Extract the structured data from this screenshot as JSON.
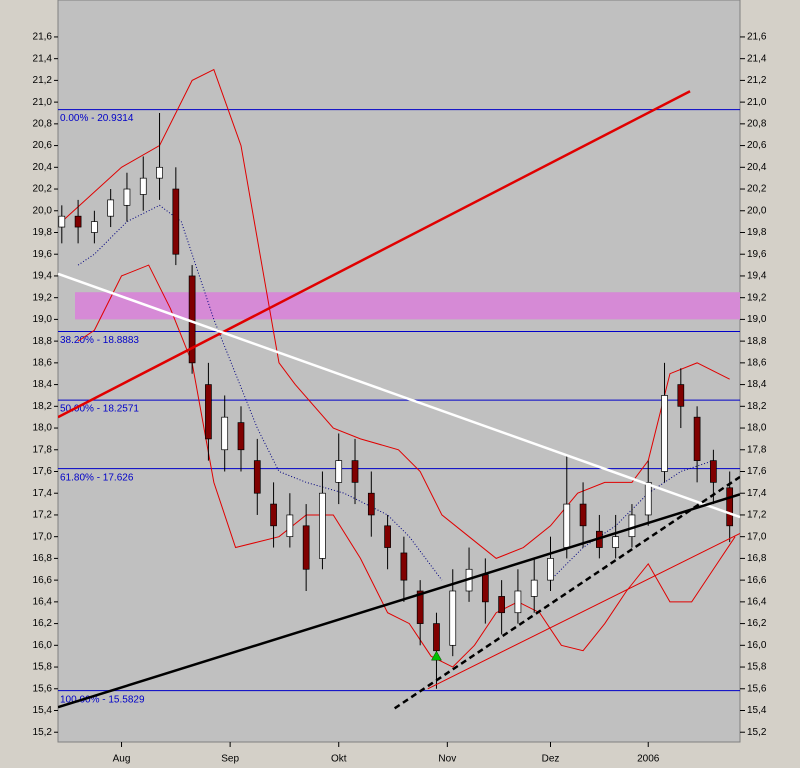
{
  "chart_data": {
    "type": "candlestick",
    "xlim": [
      -0.7,
      124.9
    ],
    "ylim": [
      15.11,
      21.94
    ],
    "xticks": [
      {
        "value": 11,
        "label": "Aug"
      },
      {
        "value": 31,
        "label": "Sep"
      },
      {
        "value": 51,
        "label": "Okt"
      },
      {
        "value": 71,
        "label": "Nov"
      },
      {
        "value": 90,
        "label": "Dez"
      },
      {
        "value": 108,
        "label": "2006"
      }
    ],
    "yticks": [
      {
        "value": 15.2,
        "label": "15,2"
      },
      {
        "value": 15.4,
        "label": "15,4"
      },
      {
        "value": 15.6,
        "label": "15,6"
      },
      {
        "value": 15.8,
        "label": "15,8"
      },
      {
        "value": 16.0,
        "label": "16,0"
      },
      {
        "value": 16.2,
        "label": "16,2"
      },
      {
        "value": 16.4,
        "label": "16,4"
      },
      {
        "value": 16.6,
        "label": "16,6"
      },
      {
        "value": 16.8,
        "label": "16,8"
      },
      {
        "value": 17.0,
        "label": "17,0"
      },
      {
        "value": 17.2,
        "label": "17,2"
      },
      {
        "value": 17.4,
        "label": "17,4"
      },
      {
        "value": 17.6,
        "label": "17,6"
      },
      {
        "value": 17.8,
        "label": "17,8"
      },
      {
        "value": 18.0,
        "label": "18,0"
      },
      {
        "value": 18.2,
        "label": "18,2"
      },
      {
        "value": 18.4,
        "label": "18,4"
      },
      {
        "value": 18.6,
        "label": "18,6"
      },
      {
        "value": 18.8,
        "label": "18,8"
      },
      {
        "value": 19.0,
        "label": "19,0"
      },
      {
        "value": 19.2,
        "label": "19,2"
      },
      {
        "value": 19.4,
        "label": "19,4"
      },
      {
        "value": 19.6,
        "label": "19,6"
      },
      {
        "value": 19.8,
        "label": "19,8"
      },
      {
        "value": 20.0,
        "label": "20,0"
      },
      {
        "value": 20.2,
        "label": "20,2"
      },
      {
        "value": 20.4,
        "label": "20,4"
      },
      {
        "value": 20.6,
        "label": "20,6"
      },
      {
        "value": 20.8,
        "label": "20,8"
      },
      {
        "value": 21.0,
        "label": "21,0"
      },
      {
        "value": 21.2,
        "label": "21,2"
      },
      {
        "value": 21.4,
        "label": "21,4"
      },
      {
        "value": 21.6,
        "label": "21,6"
      }
    ],
    "x": [
      0,
      3,
      6,
      9,
      12,
      15,
      18,
      21,
      24,
      27,
      30,
      33,
      36,
      39,
      42,
      45,
      48,
      51,
      54,
      57,
      60,
      63,
      66,
      69,
      72,
      75,
      78,
      81,
      84,
      87,
      90,
      93,
      96,
      99,
      102,
      105,
      108,
      111,
      114,
      117,
      120,
      123
    ],
    "open": [
      19.85,
      19.95,
      19.8,
      19.95,
      20.05,
      20.15,
      20.3,
      20.2,
      19.4,
      18.4,
      17.8,
      18.05,
      17.7,
      17.3,
      17.0,
      17.1,
      16.8,
      17.5,
      17.7,
      17.4,
      17.1,
      16.85,
      16.5,
      16.2,
      16.0,
      16.5,
      16.65,
      16.45,
      16.3,
      16.45,
      16.6,
      16.9,
      17.3,
      17.05,
      16.9,
      17.0,
      17.2,
      17.6,
      18.4,
      18.1,
      17.7,
      17.45
    ],
    "high": [
      20.05,
      20.1,
      20.0,
      20.2,
      20.35,
      20.5,
      20.9,
      20.4,
      19.5,
      18.6,
      18.3,
      18.2,
      17.9,
      17.5,
      17.4,
      17.3,
      17.6,
      17.95,
      17.9,
      17.6,
      17.2,
      17.0,
      16.6,
      16.3,
      16.7,
      16.9,
      16.8,
      16.6,
      16.7,
      16.8,
      17.0,
      17.75,
      17.5,
      17.2,
      17.2,
      17.3,
      17.7,
      18.6,
      18.55,
      18.2,
      17.8,
      17.6
    ],
    "low": [
      19.7,
      19.7,
      19.7,
      19.85,
      19.9,
      20.0,
      20.1,
      19.5,
      18.5,
      17.7,
      17.6,
      17.6,
      17.2,
      16.9,
      16.9,
      16.5,
      16.7,
      17.3,
      17.3,
      17.0,
      16.7,
      16.4,
      16.0,
      15.6,
      15.9,
      16.4,
      16.2,
      16.1,
      16.2,
      16.3,
      16.5,
      16.8,
      16.9,
      16.8,
      16.8,
      16.9,
      17.1,
      17.5,
      18.0,
      17.5,
      17.3,
      16.95
    ],
    "close": [
      19.95,
      19.85,
      19.9,
      20.1,
      20.2,
      20.3,
      20.4,
      19.6,
      18.6,
      17.9,
      18.1,
      17.8,
      17.4,
      17.1,
      17.2,
      16.7,
      17.4,
      17.7,
      17.5,
      17.2,
      16.9,
      16.6,
      16.2,
      15.95,
      16.5,
      16.7,
      16.4,
      16.3,
      16.5,
      16.6,
      16.8,
      17.3,
      17.1,
      16.9,
      17.0,
      17.2,
      17.5,
      18.3,
      18.2,
      17.7,
      17.5,
      17.1
    ],
    "up_color": "#ffffff",
    "down_color": "#800000",
    "series": [
      {
        "color": "#e00000",
        "style": "solid",
        "x": [
          0,
          11,
          18,
          24,
          28,
          33,
          40,
          43,
          50,
          55,
          62,
          66,
          70,
          75,
          80,
          85,
          90,
          95,
          100,
          105,
          108,
          112,
          117,
          123
        ],
        "values": [
          19.9,
          20.4,
          20.6,
          21.2,
          21.3,
          20.6,
          18.6,
          18.4,
          18.0,
          17.9,
          17.8,
          17.6,
          17.2,
          17.0,
          16.8,
          16.9,
          17.1,
          17.4,
          17.5,
          17.5,
          17.7,
          18.5,
          18.6,
          18.45
        ]
      },
      {
        "color": "#e00000",
        "style": "solid",
        "x": [
          3,
          6,
          11,
          16,
          20,
          24,
          28,
          32,
          36,
          40,
          45,
          50,
          55,
          60,
          64,
          68,
          72,
          76,
          80,
          84,
          88,
          92,
          96,
          100,
          104,
          108,
          112,
          116,
          120,
          124
        ],
        "values": [
          18.8,
          18.9,
          19.4,
          19.5,
          19.1,
          18.6,
          17.5,
          16.9,
          16.95,
          17.0,
          17.2,
          17.2,
          16.8,
          16.3,
          16.2,
          15.9,
          15.8,
          16.0,
          16.3,
          16.4,
          16.3,
          16.0,
          15.95,
          16.2,
          16.5,
          16.75,
          16.4,
          16.4,
          16.7,
          17.0
        ]
      },
      {
        "color": "#000080",
        "style": "dotted",
        "x": [
          3,
          6,
          12,
          18,
          22,
          28,
          36,
          40,
          45,
          52,
          60,
          64,
          70,
          76,
          80,
          85,
          90,
          96,
          102,
          108,
          114,
          120
        ],
        "values": [
          19.5,
          19.6,
          19.9,
          20.05,
          19.9,
          19.0,
          18.0,
          17.6,
          17.5,
          17.4,
          17.2,
          17.0,
          16.6,
          null,
          null,
          null,
          16.6,
          16.9,
          17.1,
          17.4,
          17.6,
          17.7
        ]
      }
    ],
    "lines": [
      {
        "color": "#e00000",
        "style": "thick",
        "x": [
          -0.7,
          115.7
        ],
        "values": [
          18.1,
          21.1
        ]
      },
      {
        "color": "#ffffff",
        "style": "thick",
        "x": [
          -0.7,
          124.9
        ],
        "values": [
          19.42,
          17.18
        ]
      },
      {
        "color": "#000000",
        "style": "thick",
        "x": [
          -0.7,
          124.9
        ],
        "values": [
          15.43,
          17.39
        ]
      },
      {
        "color": "#000000",
        "style": "dashed",
        "x": [
          61.3,
          124.9
        ],
        "values": [
          15.42,
          17.55
        ]
      },
      {
        "color": "#e00000",
        "style": "solid",
        "x": [
          67.4,
          124.9
        ],
        "values": [
          15.6,
          17.03
        ]
      }
    ],
    "levels": [
      {
        "value": 20.9314,
        "label": "0.00% - 20.9314"
      },
      {
        "value": 18.8883,
        "label": "38.20% - 18.8883"
      },
      {
        "value": 18.2571,
        "label": "50.00% - 18.2571"
      },
      {
        "value": 17.626,
        "label": "61.80% - 17.626"
      },
      {
        "value": 15.5829,
        "label": "100.00% - 15.5829"
      }
    ],
    "level_color": "#0000c8",
    "band": {
      "from": 19.0,
      "to": 19.25,
      "color": "#d68ad6"
    },
    "marker": {
      "x": 69,
      "value": 15.9,
      "color": "#00c000"
    }
  }
}
